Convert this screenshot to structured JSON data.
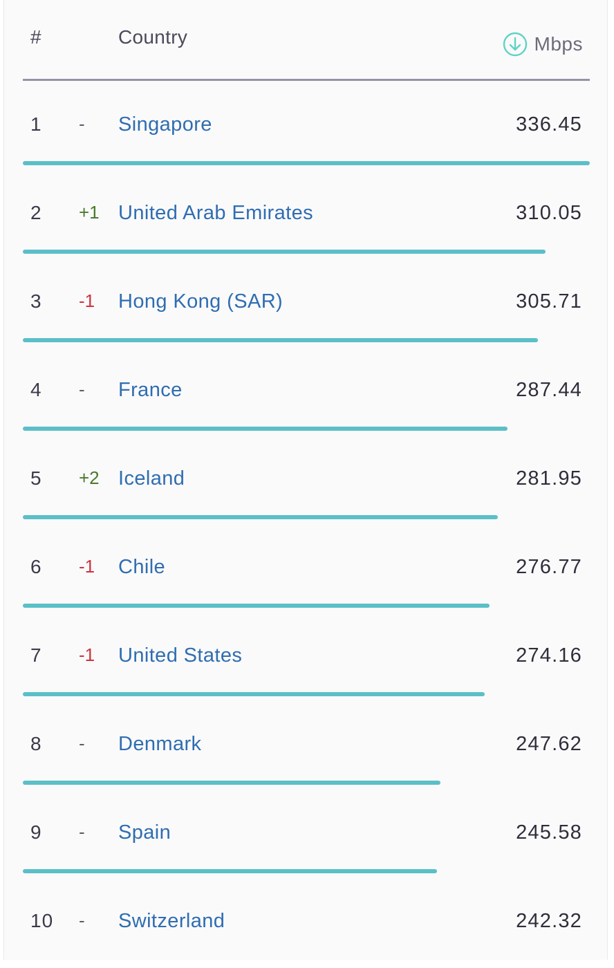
{
  "header": {
    "rank_label": "#",
    "country_label": "Country",
    "metric_label": "Mbps",
    "metric_icon": "download-arrow-icon"
  },
  "colors": {
    "bar": "#5bbfc7",
    "country_link": "#2f6db0",
    "change_up": "#4a7a2a",
    "change_down": "#d0323c"
  },
  "rows": [
    {
      "rank": "1",
      "change": "-",
      "change_dir": "none",
      "country": "Singapore",
      "speed": "336.45",
      "value": 336.45
    },
    {
      "rank": "2",
      "change": "+1",
      "change_dir": "up",
      "country": "United Arab Emirates",
      "speed": "310.05",
      "value": 310.05
    },
    {
      "rank": "3",
      "change": "-1",
      "change_dir": "down",
      "country": "Hong Kong (SAR)",
      "speed": "305.71",
      "value": 305.71
    },
    {
      "rank": "4",
      "change": "-",
      "change_dir": "none",
      "country": "France",
      "speed": "287.44",
      "value": 287.44
    },
    {
      "rank": "5",
      "change": "+2",
      "change_dir": "up",
      "country": "Iceland",
      "speed": "281.95",
      "value": 281.95
    },
    {
      "rank": "6",
      "change": "-1",
      "change_dir": "down",
      "country": "Chile",
      "speed": "276.77",
      "value": 276.77
    },
    {
      "rank": "7",
      "change": "-1",
      "change_dir": "down",
      "country": "United States",
      "speed": "274.16",
      "value": 274.16
    },
    {
      "rank": "8",
      "change": "-",
      "change_dir": "none",
      "country": "Denmark",
      "speed": "247.62",
      "value": 247.62
    },
    {
      "rank": "9",
      "change": "-",
      "change_dir": "none",
      "country": "Spain",
      "speed": "245.58",
      "value": 245.58
    },
    {
      "rank": "10",
      "change": "-",
      "change_dir": "none",
      "country": "Switzerland",
      "speed": "242.32",
      "value": 242.32
    }
  ]
}
